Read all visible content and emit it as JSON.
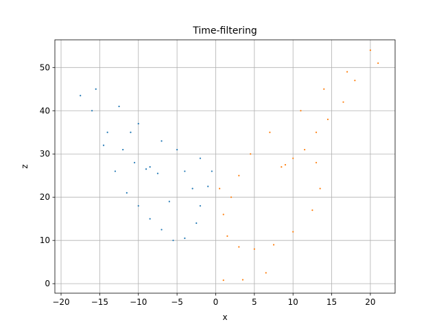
{
  "chart_data": {
    "type": "scatter",
    "title": "Time-filtering",
    "xlabel": "x",
    "ylabel": "z",
    "xlim": [
      -20.8,
      23.2
    ],
    "ylim": [
      -2.2,
      56.4
    ],
    "xticks": [
      -20,
      -15,
      -10,
      -5,
      0,
      5,
      10,
      15,
      20
    ],
    "yticks": [
      0,
      10,
      20,
      30,
      40,
      50
    ],
    "grid": true,
    "legend": "none",
    "colors": {
      "left_lobe": "#1f77b4",
      "right_lobe": "#ff7f0e",
      "grid": "#b0b0b0"
    },
    "series": [
      {
        "lobe": "left",
        "color": "#1f77b4",
        "sample_points": [
          [
            -8.5,
            27.0
          ],
          [
            -9.0,
            26.5
          ],
          [
            -7.5,
            25.5
          ],
          [
            -10.5,
            28.0
          ],
          [
            -12.0,
            31.0
          ],
          [
            -14.0,
            35.0
          ],
          [
            -16.0,
            40.0
          ],
          [
            -17.5,
            43.5
          ],
          [
            -15.5,
            45.0
          ],
          [
            -12.5,
            41.0
          ],
          [
            -10.0,
            37.0
          ],
          [
            -7.0,
            33.0
          ],
          [
            -5.0,
            31.0
          ],
          [
            -4.0,
            26.0
          ],
          [
            -3.0,
            22.0
          ],
          [
            -2.0,
            18.0
          ],
          [
            -2.5,
            14.0
          ],
          [
            -4.0,
            10.5
          ],
          [
            -5.5,
            10.0
          ],
          [
            -7.0,
            12.5
          ],
          [
            -8.5,
            15.0
          ],
          [
            -10.0,
            18.0
          ],
          [
            -11.5,
            21.0
          ],
          [
            -13.0,
            26.0
          ],
          [
            -14.5,
            32.0
          ],
          [
            -1.0,
            22.5
          ],
          [
            -0.5,
            26.0
          ],
          [
            -2.0,
            29.0
          ],
          [
            -6.0,
            19.0
          ],
          [
            -11.0,
            35.0
          ]
        ]
      },
      {
        "lobe": "right",
        "color": "#ff7f0e",
        "sample_points": [
          [
            8.5,
            27.0
          ],
          [
            9.0,
            27.5
          ],
          [
            10.0,
            29.0
          ],
          [
            11.5,
            31.0
          ],
          [
            13.0,
            35.0
          ],
          [
            14.5,
            38.0
          ],
          [
            16.5,
            42.0
          ],
          [
            18.0,
            47.0
          ],
          [
            17.0,
            49.0
          ],
          [
            14.0,
            45.0
          ],
          [
            11.0,
            40.0
          ],
          [
            7.0,
            35.0
          ],
          [
            4.5,
            30.0
          ],
          [
            3.0,
            25.0
          ],
          [
            2.0,
            20.0
          ],
          [
            1.0,
            16.0
          ],
          [
            1.5,
            11.0
          ],
          [
            3.0,
            8.5
          ],
          [
            5.0,
            8.0
          ],
          [
            7.5,
            9.0
          ],
          [
            10.0,
            12.0
          ],
          [
            12.5,
            17.0
          ],
          [
            13.5,
            22.0
          ],
          [
            13.0,
            28.0
          ],
          [
            0.5,
            22.0
          ],
          [
            1.0,
            0.8
          ],
          [
            3.5,
            0.9
          ],
          [
            6.5,
            2.5
          ],
          [
            20.0,
            54.0
          ],
          [
            21.0,
            51.0
          ]
        ]
      }
    ]
  }
}
